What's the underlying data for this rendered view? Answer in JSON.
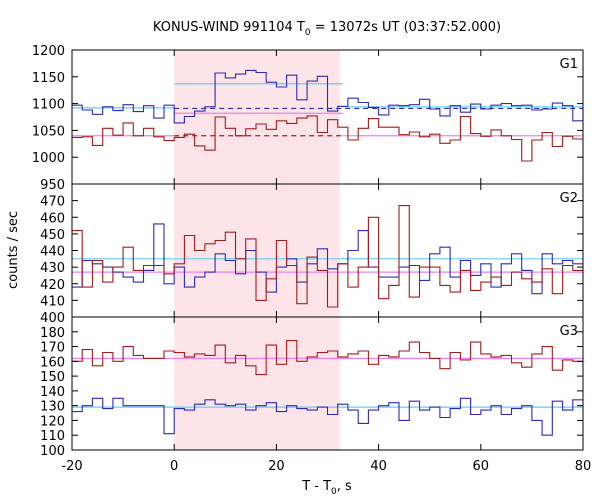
{
  "chart_data": {
    "type": "line",
    "title": {
      "prefix": "KONUS-WIND 991104 T",
      "subscript": "0",
      "suffix": " = 13072s UT (03:37:52.000)"
    },
    "xlabel": {
      "prefix": "T - T",
      "subscript": "0",
      "suffix": ", s"
    },
    "ylabel": "counts / sec",
    "xlim": [
      -20,
      80
    ],
    "x_ticks": [
      -20,
      0,
      20,
      40,
      60,
      80
    ],
    "x_tick_labels": [
      "-20",
      "0",
      "20",
      "40",
      "60",
      "80"
    ],
    "highlight_interval": [
      0,
      32.4
    ],
    "bin_width": 2.0,
    "colors": {
      "blue": "#2b2bb3",
      "red": "#a11c1c",
      "cyan": "#66ccf0",
      "pink": "#ee82ee",
      "shade": "#fde4e8"
    },
    "panels": [
      {
        "label": "G1",
        "ylim": [
          950,
          1200
        ],
        "y_ticks": [
          950,
          1000,
          1050,
          1100,
          1150,
          1200
        ],
        "x_start": -20,
        "series": [
          {
            "color": "blue",
            "values": [
              1097,
              1088,
              1080,
              1094,
              1087,
              1098,
              1085,
              1096,
              1073,
              1097,
              1064,
              1076,
              1086,
              1094,
              1157,
              1148,
              1155,
              1162,
              1158,
              1140,
              1131,
              1153,
              1107,
              1142,
              1151,
              1086,
              1095,
              1110,
              1102,
              1093,
              1079,
              1097,
              1096,
              1098,
              1108,
              1090,
              1077,
              1096,
              1084,
              1099,
              1090,
              1097,
              1100,
              1096,
              1097,
              1088,
              1090,
              1101,
              1096,
              1068
            ]
          },
          {
            "color": "red",
            "values": [
              1037,
              1038,
              1022,
              1054,
              1041,
              1064,
              1040,
              1054,
              1038,
              1031,
              1037,
              1043,
              1021,
              1013,
              1075,
              1054,
              1040,
              1053,
              1062,
              1052,
              1068,
              1063,
              1073,
              1077,
              1046,
              1070,
              1056,
              1032,
              1054,
              1072,
              1056,
              1056,
              1042,
              1047,
              1038,
              1043,
              1026,
              1032,
              1076,
              1044,
              1039,
              1051,
              1040,
              1033,
              993,
              1032,
              1046,
              1020,
              1039,
              1034
            ]
          }
        ],
        "background_levels": [
          {
            "color": "cyan",
            "style": "solid",
            "segments": [
              [
                -20,
                0,
                1092
              ],
              [
                0,
                33,
                1137
              ],
              [
                33,
                80,
                1094
              ]
            ]
          },
          {
            "color": "pink",
            "style": "solid",
            "segments": [
              [
                -20,
                0,
                1040
              ],
              [
                0,
                33,
                1082
              ],
              [
                33,
                80,
                1040
              ]
            ]
          },
          {
            "color": "blue",
            "style": "dashed",
            "segments": [
              [
                0,
                80,
                1091
              ]
            ]
          },
          {
            "color": "red",
            "style": "dashed",
            "segments": [
              [
                0,
                33,
                1040
              ]
            ]
          }
        ]
      },
      {
        "label": "G2",
        "ylim": [
          400,
          480
        ],
        "y_ticks": [
          400,
          410,
          420,
          430,
          440,
          450,
          460,
          470
        ],
        "x_start": -20,
        "series": [
          {
            "color": "blue",
            "values": [
              418,
              434,
              432,
              430,
              427,
              424,
              421,
              428,
              456,
              420,
              430,
              418,
              424,
              427,
              438,
              434,
              426,
              440,
              427,
              415,
              430,
              435,
              421,
              432,
              441,
              429,
              432,
              440,
              452,
              430,
              424,
              424,
              430,
              431,
              422,
              438,
              442,
              424,
              434,
              425,
              432,
              418,
              432,
              438,
              428,
              414,
              438,
              432,
              434,
              432
            ]
          },
          {
            "color": "red",
            "values": [
              452,
              418,
              434,
              421,
              430,
              442,
              428,
              431,
              431,
              426,
              432,
              449,
              440,
              444,
              446,
              451,
              435,
              447,
              410,
              423,
              446,
              431,
              408,
              436,
              428,
              406,
              432,
              418,
              430,
              460,
              411,
              419,
              467,
              412,
              430,
              430,
              419,
              415,
              428,
              416,
              421,
              424,
              419,
              427,
              423,
              421,
              429,
              414,
              431,
              428
            ]
          }
        ],
        "background_levels": [
          {
            "color": "cyan",
            "style": "solid",
            "segments": [
              [
                -20,
                80,
                435
              ]
            ]
          },
          {
            "color": "pink",
            "style": "solid",
            "segments": [
              [
                -20,
                80,
                427
              ]
            ]
          }
        ]
      },
      {
        "label": "G3",
        "ylim": [
          100,
          190
        ],
        "y_ticks": [
          100,
          110,
          120,
          130,
          140,
          150,
          160,
          170,
          180
        ],
        "x_start": -20,
        "series": [
          {
            "color": "blue",
            "values": [
              126,
              130,
              135,
              128,
              135,
              130,
              130,
              130,
              130,
              111,
              128,
              127,
              131,
              134,
              131,
              130,
              131,
              127,
              130,
              132,
              126,
              130,
              128,
              127,
              129,
              124,
              131,
              127,
              118,
              127,
              130,
              132,
              120,
              133,
              127,
              129,
              122,
              128,
              135,
              124,
              127,
              130,
              124,
              128,
              130,
              120,
              110,
              133,
              127,
              134
            ]
          },
          {
            "color": "red",
            "values": [
              160,
              168,
              157,
              166,
              160,
              170,
              164,
              162,
              162,
              167,
              166,
              163,
              165,
              164,
              171,
              159,
              164,
              157,
              151,
              171,
              158,
              174,
              160,
              163,
              166,
              167,
              163,
              165,
              167,
              158,
              164,
              163,
              167,
              173,
              166,
              162,
              155,
              166,
              161,
              173,
              165,
              163,
              164,
              159,
              156,
              165,
              170,
              154,
              161,
              160
            ]
          }
        ],
        "background_levels": [
          {
            "color": "cyan",
            "style": "solid",
            "segments": [
              [
                -20,
                80,
                129
              ]
            ]
          },
          {
            "color": "pink",
            "style": "solid",
            "segments": [
              [
                -20,
                80,
                162
              ]
            ]
          }
        ]
      }
    ]
  }
}
